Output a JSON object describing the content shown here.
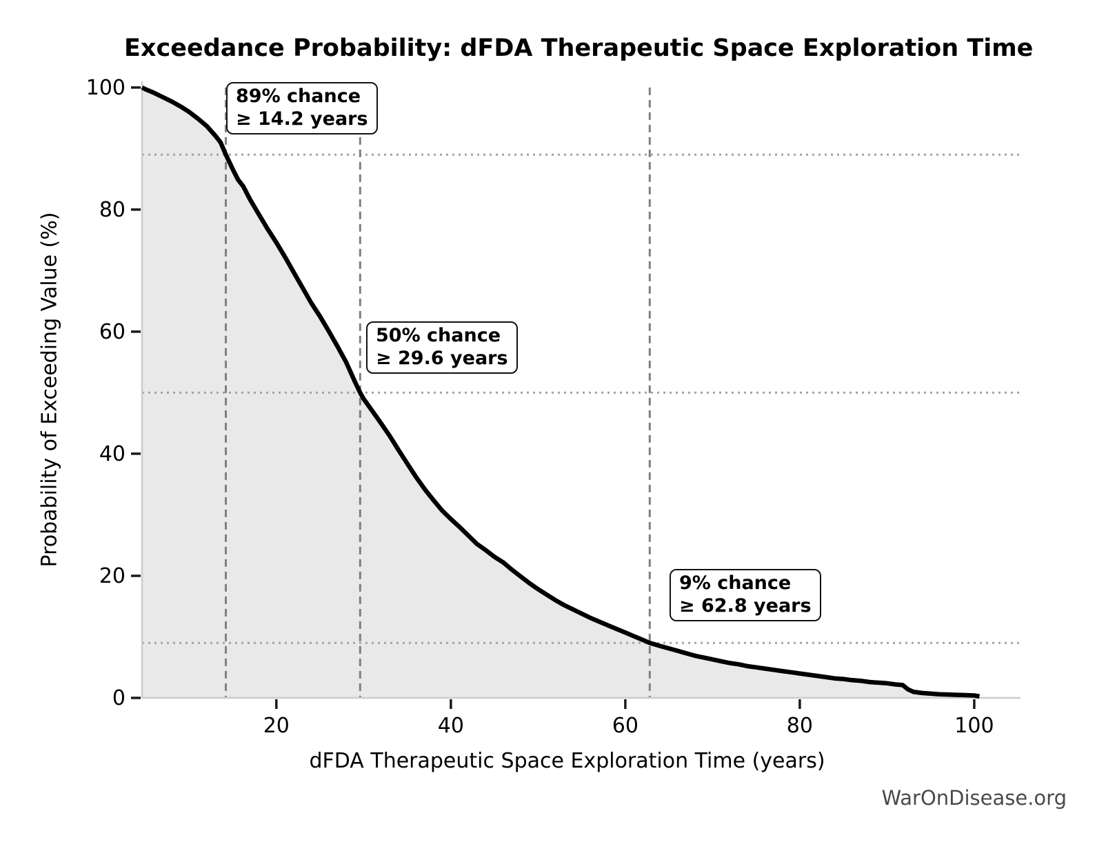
{
  "watermark": "WarOnDisease.org",
  "chart_data": {
    "type": "line",
    "title": "Exceedance Probability: dFDA Therapeutic Space Exploration Time",
    "xlabel": "dFDA Therapeutic Space Exploration Time (years)",
    "ylabel": "Probability of Exceeding Value (%)",
    "xlim": [
      4.6,
      105.3
    ],
    "ylim": [
      0,
      101
    ],
    "x_ticks": [
      20,
      40,
      60,
      80,
      100
    ],
    "y_ticks": [
      0,
      20,
      40,
      60,
      80,
      100
    ],
    "grid": false,
    "legend": "none",
    "colors": {
      "curve": "#000000",
      "fill": "#e9e9e9",
      "dashed_line": "#7f7f7f",
      "dotted_line": "#a3a3a3",
      "spine": "#cccccc",
      "tick": "#1a1a1a",
      "watermark": "#4a4a4a"
    },
    "annotations": [
      {
        "probability_pct": 89,
        "years": 14.2,
        "line1": "89% chance",
        "line2": "≥ 14.2 years"
      },
      {
        "probability_pct": 50,
        "years": 29.6,
        "line1": "50% chance",
        "line2": "≥ 29.6 years"
      },
      {
        "probability_pct": 9,
        "years": 62.8,
        "line1": "9% chance",
        "line2": "≥ 62.8 years"
      }
    ],
    "series": [
      {
        "name": "exceedance-probability-curve",
        "points": [
          [
            4.6,
            100
          ],
          [
            5,
            99.7
          ],
          [
            6,
            99.1
          ],
          [
            7,
            98.4
          ],
          [
            8,
            97.7
          ],
          [
            9,
            96.9
          ],
          [
            10,
            96.0
          ],
          [
            11,
            94.9
          ],
          [
            12,
            93.7
          ],
          [
            13,
            92.1
          ],
          [
            13.6,
            91.0
          ],
          [
            14.2,
            89.0
          ],
          [
            15,
            86.6
          ],
          [
            15.6,
            84.9
          ],
          [
            16.2,
            83.8
          ],
          [
            17,
            81.6
          ],
          [
            18,
            79.2
          ],
          [
            19,
            76.8
          ],
          [
            20,
            74.6
          ],
          [
            21,
            72.2
          ],
          [
            22,
            69.7
          ],
          [
            23,
            67.2
          ],
          [
            24,
            64.7
          ],
          [
            25,
            62.5
          ],
          [
            26,
            60.1
          ],
          [
            27,
            57.6
          ],
          [
            28,
            55.0
          ],
          [
            29,
            51.8
          ],
          [
            29.6,
            50.0
          ],
          [
            30,
            49.0
          ],
          [
            31,
            47.0
          ],
          [
            32,
            45.0
          ],
          [
            33,
            42.9
          ],
          [
            34,
            40.6
          ],
          [
            35,
            38.4
          ],
          [
            36,
            36.2
          ],
          [
            37,
            34.2
          ],
          [
            38,
            32.4
          ],
          [
            39,
            30.7
          ],
          [
            40,
            29.3
          ],
          [
            41,
            28.0
          ],
          [
            42,
            26.6
          ],
          [
            43,
            25.2
          ],
          [
            44,
            24.2
          ],
          [
            45,
            23.1
          ],
          [
            46,
            22.2
          ],
          [
            47,
            21.0
          ],
          [
            48,
            19.9
          ],
          [
            49,
            18.8
          ],
          [
            50,
            17.8
          ],
          [
            51,
            16.9
          ],
          [
            52,
            16.0
          ],
          [
            53,
            15.2
          ],
          [
            54,
            14.5
          ],
          [
            55,
            13.8
          ],
          [
            56,
            13.1
          ],
          [
            57,
            12.5
          ],
          [
            58,
            11.9
          ],
          [
            59,
            11.3
          ],
          [
            60,
            10.7
          ],
          [
            61,
            10.1
          ],
          [
            62,
            9.5
          ],
          [
            62.8,
            9.0
          ],
          [
            64,
            8.5
          ],
          [
            65,
            8.1
          ],
          [
            66,
            7.7
          ],
          [
            67,
            7.3
          ],
          [
            68,
            6.9
          ],
          [
            69,
            6.6
          ],
          [
            70,
            6.3
          ],
          [
            71,
            6.0
          ],
          [
            72,
            5.7
          ],
          [
            73,
            5.5
          ],
          [
            74,
            5.2
          ],
          [
            75,
            5.0
          ],
          [
            76,
            4.8
          ],
          [
            77,
            4.6
          ],
          [
            78,
            4.4
          ],
          [
            79,
            4.2
          ],
          [
            80,
            4.0
          ],
          [
            81,
            3.8
          ],
          [
            82,
            3.6
          ],
          [
            83,
            3.4
          ],
          [
            84,
            3.2
          ],
          [
            85,
            3.1
          ],
          [
            86,
            2.9
          ],
          [
            87,
            2.8
          ],
          [
            88,
            2.6
          ],
          [
            89,
            2.5
          ],
          [
            90,
            2.4
          ],
          [
            91,
            2.2
          ],
          [
            91.8,
            2.1
          ],
          [
            92.4,
            1.4
          ],
          [
            93,
            1.0
          ],
          [
            94,
            0.8
          ],
          [
            95,
            0.7
          ],
          [
            96,
            0.6
          ],
          [
            97,
            0.55
          ],
          [
            98,
            0.5
          ],
          [
            99,
            0.45
          ],
          [
            100,
            0.4
          ],
          [
            100.6,
            0.25
          ]
        ]
      }
    ]
  }
}
